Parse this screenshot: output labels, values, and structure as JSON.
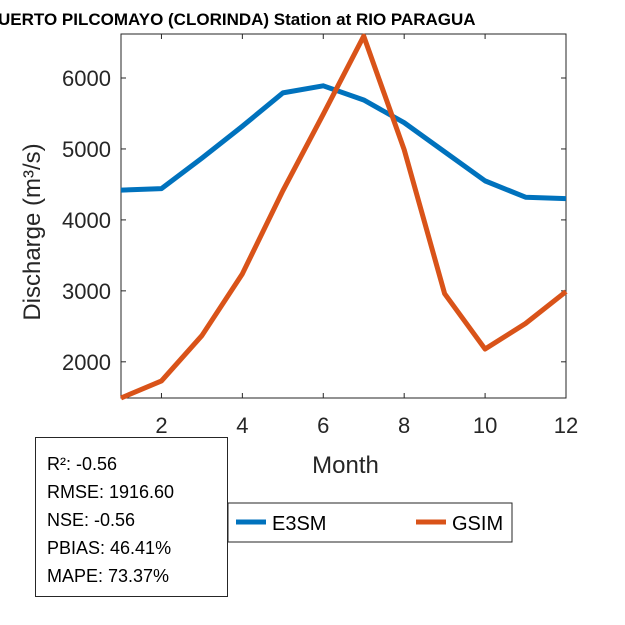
{
  "chart_data": {
    "type": "line",
    "title": "UERTO PILCOMAYO (CLORINDA)  Station at  RIO PARAGUA",
    "xlabel": "Month",
    "ylabel": "Discharge (m³/s)",
    "xlim": [
      1,
      12
    ],
    "ylim": [
      1490,
      6620
    ],
    "xticks": [
      2,
      4,
      6,
      8,
      10,
      12
    ],
    "yticks": [
      2000,
      3000,
      4000,
      5000,
      6000
    ],
    "x": [
      1,
      2,
      3,
      4,
      5,
      6,
      7,
      8,
      9,
      10,
      11,
      12
    ],
    "series": [
      {
        "name": "E3SM",
        "color": "#0072BD",
        "values": [
          4420,
          4440,
          4870,
          5320,
          5790,
          5890,
          5690,
          5370,
          4960,
          4550,
          4320,
          4300
        ]
      },
      {
        "name": "GSIM",
        "color": "#D95319",
        "values": [
          1490,
          1730,
          2370,
          3240,
          4410,
          5490,
          6590,
          4990,
          2960,
          2180,
          2540,
          2990
        ]
      }
    ],
    "legend_placement": "bottom",
    "annotations": [
      "R²: -0.56",
      "RMSE: 1916.60",
      "NSE: -0.56",
      "PBIAS: 46.41%",
      "MAPE: 73.37%"
    ]
  }
}
